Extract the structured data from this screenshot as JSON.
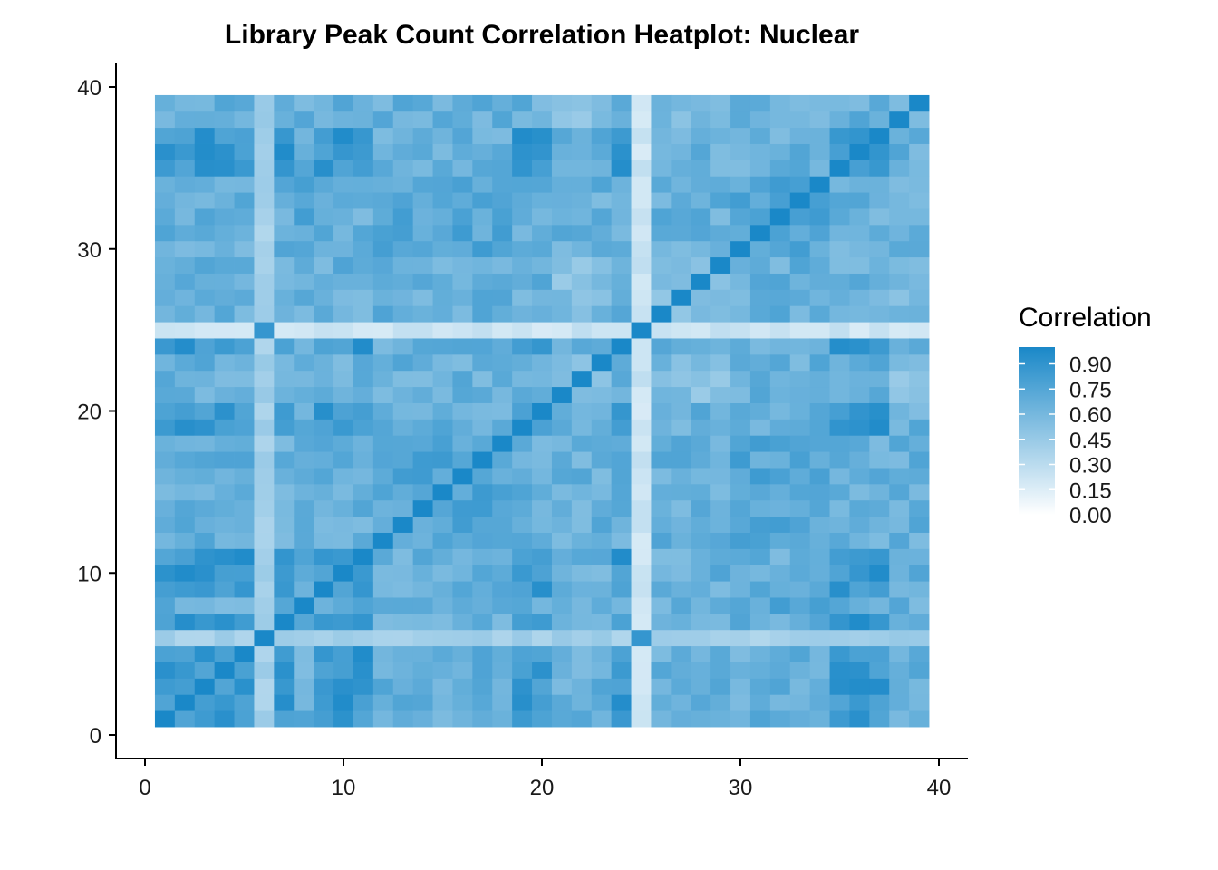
{
  "chart_data": {
    "type": "heatmap",
    "title": "Library Peak Count Correlation Heatplot: Nuclear",
    "xlabel": "",
    "ylabel": "",
    "xlim": [
      0,
      40
    ],
    "ylim": [
      0,
      40
    ],
    "x_ticks": [
      0,
      10,
      20,
      30,
      40
    ],
    "y_ticks": [
      0,
      10,
      20,
      30,
      40
    ],
    "n": 39,
    "legend": {
      "title": "Correlation",
      "placement": "right",
      "breaks": [
        "0.90",
        "0.75",
        "0.60",
        "0.45",
        "0.30",
        "0.15",
        "0.00"
      ],
      "range": [
        0,
        1
      ],
      "low_color": "#ffffff",
      "high_color": "#1a88c8"
    },
    "diagonal_value": 1.0,
    "low_rows": [
      6,
      25
    ],
    "low_row_values": {
      "6": 0.4,
      "25": 0.22
    },
    "low_pair_value": 0.88,
    "block_groups": [
      {
        "members": [
          1,
          2,
          3,
          4,
          5,
          35,
          36,
          37,
          24,
          19,
          20,
          10,
          11,
          9,
          7
        ],
        "within": 0.86
      },
      {
        "members": [
          26,
          27,
          28,
          29,
          22,
          23,
          21,
          38,
          39
        ],
        "within": 0.55
      },
      {
        "members": [
          12,
          13,
          14,
          15,
          16,
          17,
          18,
          8,
          30,
          31,
          32,
          33,
          34
        ],
        "within": 0.74
      }
    ],
    "between_group_value": 0.66,
    "grid": false,
    "grid_note": "39x39 library correlation matrix; diagonal = 1"
  }
}
